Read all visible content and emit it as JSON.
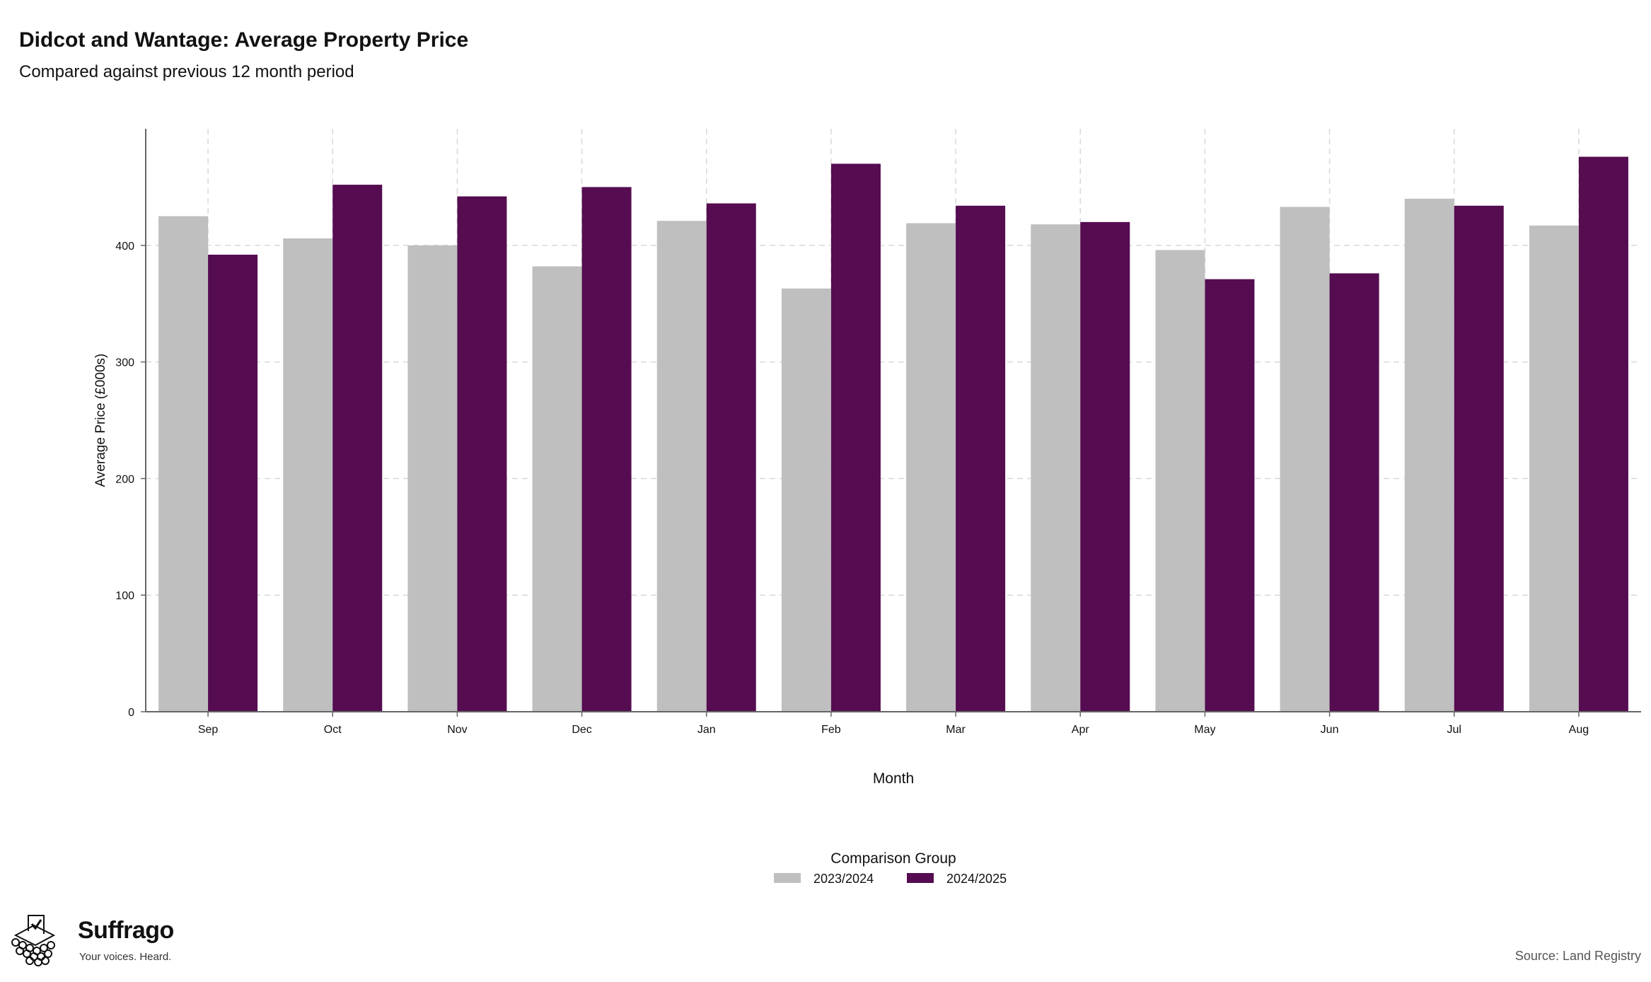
{
  "header": {
    "title": "Didcot and Wantage: Average Property Price",
    "subtitle": "Compared against previous 12 month period"
  },
  "chart_data": {
    "type": "bar",
    "categories": [
      "Sep",
      "Oct",
      "Nov",
      "Dec",
      "Jan",
      "Feb",
      "Mar",
      "Apr",
      "May",
      "Jun",
      "Jul",
      "Aug"
    ],
    "series": [
      {
        "name": "2023/2024",
        "color": "#bfbfbf",
        "values": [
          425,
          406,
          400,
          382,
          421,
          363,
          419,
          418,
          396,
          433,
          440,
          417
        ]
      },
      {
        "name": "2024/2025",
        "color": "#550c50",
        "values": [
          392,
          452,
          442,
          450,
          436,
          470,
          434,
          420,
          371,
          376,
          434,
          476
        ]
      }
    ],
    "xlabel": "Month",
    "ylabel": "Average Price (£000s)",
    "ylim": [
      0,
      500
    ],
    "yticks": [
      0,
      100,
      200,
      300,
      400
    ],
    "grid": true,
    "legend": {
      "title": "Comparison Group",
      "position": "bottom"
    }
  },
  "footer": {
    "brand": "Suffrago",
    "tagline": "Your voices. Heard.",
    "source": "Source: Land Registry"
  }
}
